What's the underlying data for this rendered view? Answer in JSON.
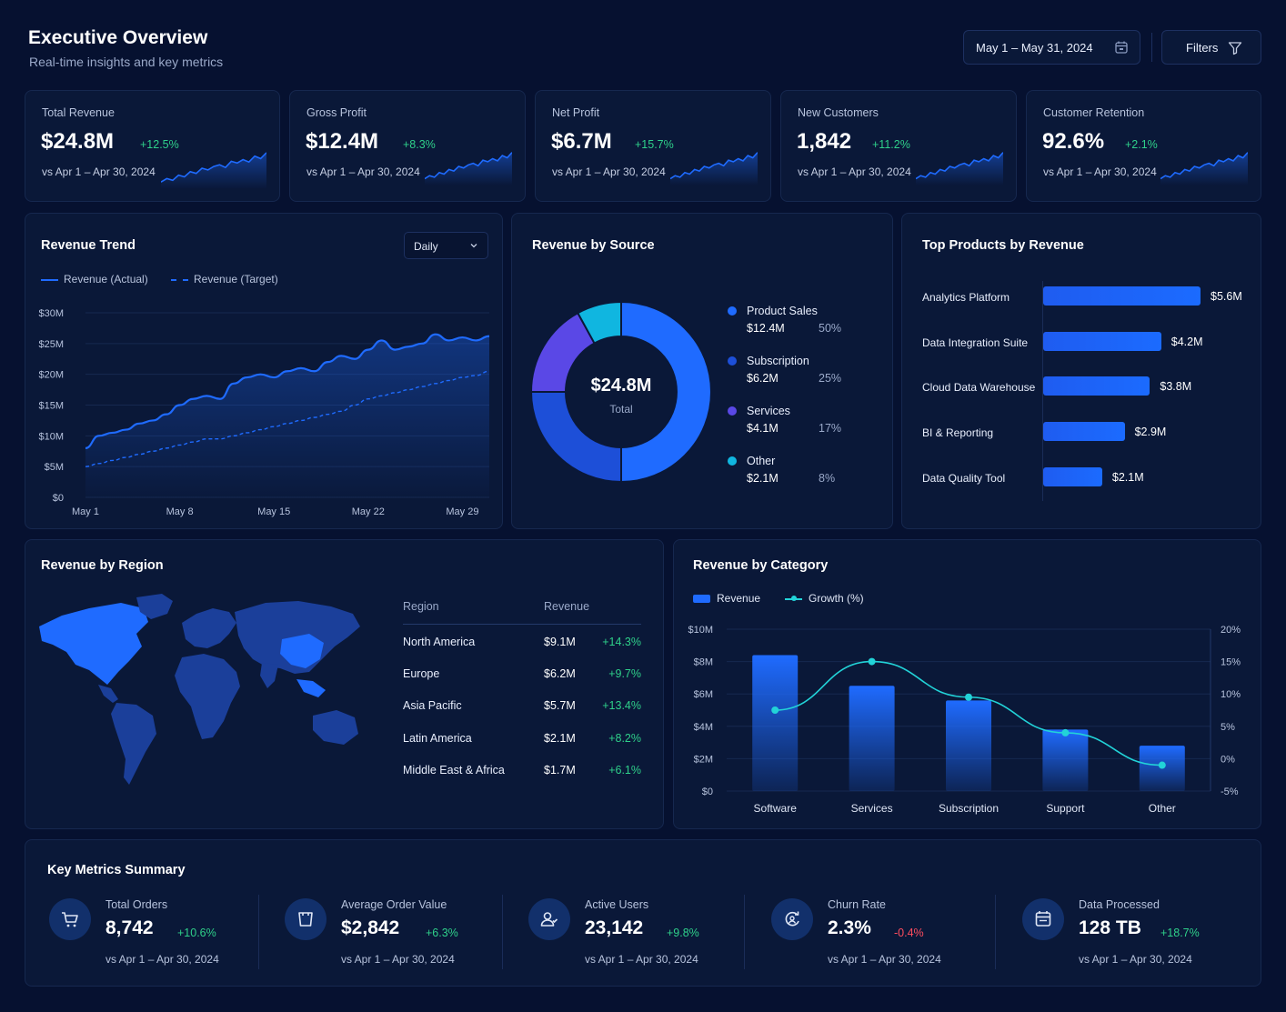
{
  "header": {
    "title": "Executive Overview",
    "subtitle": "Real-time insights and key metrics",
    "date_range": "May 1 – May 31, 2024",
    "filters_label": "Filters"
  },
  "kpis": [
    {
      "label": "Total Revenue",
      "value": "$24.8M",
      "change": "+12.5%",
      "compare": "vs Apr 1 – Apr 30, 2024"
    },
    {
      "label": "Gross Profit",
      "value": "$12.4M",
      "change": "+8.3%",
      "compare": "vs Apr 1 – Apr 30, 2024"
    },
    {
      "label": "Net Profit",
      "value": "$6.7M",
      "change": "+15.7%",
      "compare": "vs Apr 1 – Apr 30, 2024"
    },
    {
      "label": "New Customers",
      "value": "1,842",
      "change": "+11.2%",
      "compare": "vs Apr 1 – Apr 30, 2024"
    },
    {
      "label": "Customer Retention",
      "value": "92.6%",
      "change": "+2.1%",
      "compare": "vs Apr 1 – Apr 30, 2024"
    }
  ],
  "revenue_trend": {
    "title": "Revenue Trend",
    "granularity": "Daily",
    "legend_actual": "Revenue (Actual)",
    "legend_target": "Revenue (Target)"
  },
  "revenue_source": {
    "title": "Revenue by Source",
    "total_value": "$24.8M",
    "total_label": "Total",
    "items": [
      {
        "name": "Product Sales",
        "amount": "$12.4M",
        "pct": "50%",
        "color": "#1f6bff"
      },
      {
        "name": "Subscription",
        "amount": "$6.2M",
        "pct": "25%",
        "color": "#1d4fd8"
      },
      {
        "name": "Services",
        "amount": "$4.1M",
        "pct": "17%",
        "color": "#5a48e6"
      },
      {
        "name": "Other",
        "amount": "$2.1M",
        "pct": "8%",
        "color": "#10b6e0"
      }
    ]
  },
  "top_products": {
    "title": "Top Products by Revenue",
    "items": [
      {
        "name": "Analytics Platform",
        "value": "$5.6M"
      },
      {
        "name": "Data Integration Suite",
        "value": "$4.2M"
      },
      {
        "name": "Cloud Data Warehouse",
        "value": "$3.8M"
      },
      {
        "name": "BI & Reporting",
        "value": "$2.9M"
      },
      {
        "name": "Data Quality Tool",
        "value": "$2.1M"
      }
    ]
  },
  "revenue_region": {
    "title": "Revenue by Region",
    "col_region": "Region",
    "col_revenue": "Revenue",
    "rows": [
      {
        "region": "North America",
        "revenue": "$9.1M",
        "change": "+14.3%"
      },
      {
        "region": "Europe",
        "revenue": "$6.2M",
        "change": "+9.7%"
      },
      {
        "region": "Asia Pacific",
        "revenue": "$5.7M",
        "change": "+13.4%"
      },
      {
        "region": "Latin America",
        "revenue": "$2.1M",
        "change": "+8.2%"
      },
      {
        "region": "Middle East & Africa",
        "revenue": "$1.7M",
        "change": "+6.1%"
      }
    ]
  },
  "revenue_category": {
    "title": "Revenue by Category",
    "legend_revenue": "Revenue",
    "legend_growth": "Growth (%)"
  },
  "key_metrics": {
    "title": "Key Metrics Summary",
    "items": [
      {
        "label": "Total Orders",
        "value": "8,742",
        "change": "+10.6%",
        "compare": "vs Apr 1 – Apr 30, 2024",
        "icon": "cart-icon"
      },
      {
        "label": "Average Order Value",
        "value": "$2,842",
        "change": "+6.3%",
        "compare": "vs Apr 1 – Apr 30, 2024",
        "icon": "bag-icon"
      },
      {
        "label": "Active Users",
        "value": "23,142",
        "change": "+9.8%",
        "compare": "vs Apr 1 – Apr 30, 2024",
        "icon": "users-icon"
      },
      {
        "label": "Churn Rate",
        "value": "2.3%",
        "change": "-0.4%",
        "compare": "vs Apr 1 – Apr 30, 2024",
        "icon": "churn-icon"
      },
      {
        "label": "Data Processed",
        "value": "128 TB",
        "change": "+18.7%",
        "compare": "vs Apr 1 – Apr 30, 2024",
        "icon": "database-icon"
      }
    ]
  },
  "chart_data": [
    {
      "type": "line",
      "title": "Revenue Trend",
      "y_ticks": [
        "$0",
        "$5M",
        "$10M",
        "$15M",
        "$20M",
        "$25M",
        "$30M"
      ],
      "x_ticks": [
        "May 1",
        "May 8",
        "May 15",
        "May 22",
        "May 29"
      ],
      "ylim": [
        0,
        30
      ],
      "y_unit": "$M",
      "x": [
        1,
        2,
        3,
        4,
        5,
        6,
        7,
        8,
        9,
        10,
        11,
        12,
        13,
        14,
        15,
        16,
        17,
        18,
        19,
        20,
        21,
        22,
        23,
        24,
        25,
        26,
        27,
        28,
        29,
        30,
        31
      ],
      "series": [
        {
          "name": "Revenue (Actual)",
          "values": [
            8,
            10,
            10.5,
            11,
            12,
            12.5,
            13.5,
            15,
            16,
            16.5,
            16,
            18.5,
            19.5,
            20,
            19.5,
            20.5,
            21,
            20.5,
            22,
            23,
            22.5,
            24,
            25.5,
            24,
            24.5,
            25,
            26.5,
            25.5,
            26,
            25.5,
            26.2
          ]
        },
        {
          "name": "Revenue (Target)",
          "values": [
            5,
            5.5,
            6,
            6.5,
            7,
            7.5,
            8,
            8.5,
            9,
            9.5,
            9.5,
            10,
            10.5,
            11,
            11.5,
            12,
            12.5,
            13,
            13.5,
            14,
            15,
            16,
            16.5,
            17,
            17.5,
            18,
            18.5,
            19,
            19.5,
            19.8,
            20.5
          ]
        }
      ]
    },
    {
      "type": "pie",
      "title": "Revenue by Source",
      "categories": [
        "Product Sales",
        "Subscription",
        "Services",
        "Other"
      ],
      "values": [
        50,
        25,
        17,
        8
      ]
    },
    {
      "type": "bar",
      "title": "Top Products by Revenue",
      "categories": [
        "Analytics Platform",
        "Data Integration Suite",
        "Cloud Data Warehouse",
        "BI & Reporting",
        "Data Quality Tool"
      ],
      "values": [
        5.6,
        4.2,
        3.8,
        2.9,
        2.1
      ]
    },
    {
      "type": "bar",
      "title": "Revenue by Category",
      "categories": [
        "Software",
        "Services",
        "Subscription",
        "Support",
        "Other"
      ],
      "y_ticks": [
        "$0",
        "$2M",
        "$4M",
        "$6M",
        "$8M",
        "$10M"
      ],
      "y2_ticks": [
        "-5%",
        "0%",
        "5%",
        "10%",
        "15%",
        "20%"
      ],
      "ylim": [
        0,
        10
      ],
      "y2lim": [
        -5,
        20
      ],
      "series": [
        {
          "name": "Revenue",
          "values": [
            8.4,
            6.5,
            5.6,
            3.8,
            2.8
          ]
        },
        {
          "name": "Growth (%)",
          "values": [
            7.5,
            15,
            9.5,
            4,
            -1
          ]
        }
      ]
    }
  ]
}
